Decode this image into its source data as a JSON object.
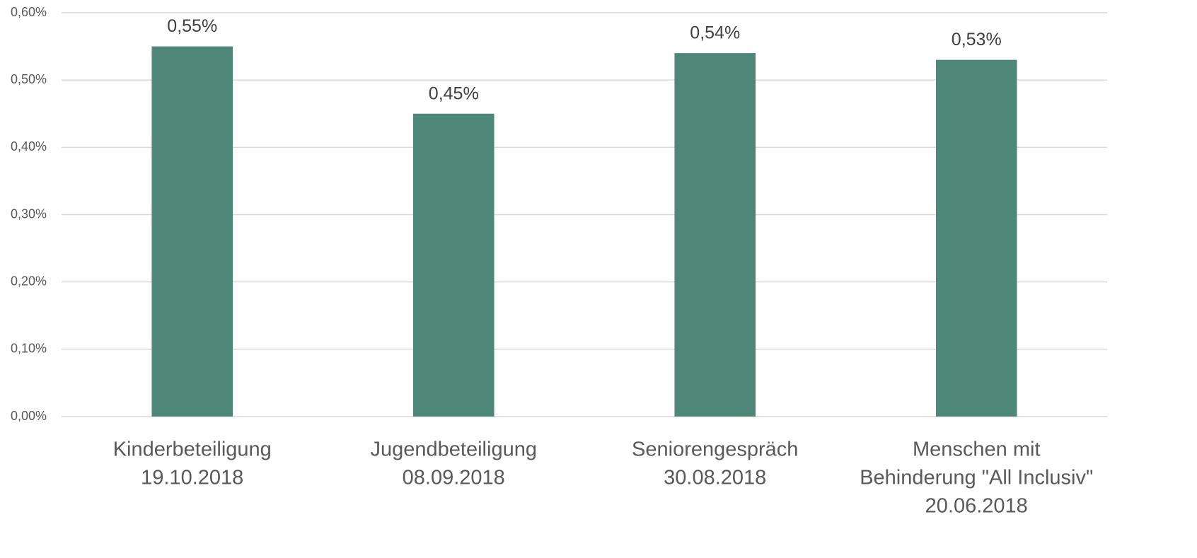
{
  "chart_data": {
    "type": "bar",
    "categories": [
      [
        "Kinderbeteiligung",
        "19.10.2018"
      ],
      [
        "Jugendbeteiligung",
        "08.09.2018"
      ],
      [
        "Seniorengespräch",
        "30.08.2018"
      ],
      [
        "Menschen mit",
        "Behinderung \"All Inclusiv\"",
        "20.06.2018"
      ]
    ],
    "values": [
      0.55,
      0.45,
      0.54,
      0.53
    ],
    "value_labels": [
      "0,55%",
      "0,45%",
      "0,54%",
      "0,53%"
    ],
    "color": "#4e8677",
    "ylim": [
      0,
      0.6
    ],
    "yticks": [
      {
        "value": 0,
        "label": "0,00%"
      },
      {
        "value": 0.1,
        "label": "0,10%"
      },
      {
        "value": 0.2,
        "label": "0,20%"
      },
      {
        "value": 0.3,
        "label": "0,30%"
      },
      {
        "value": 0.4,
        "label": "0,40%"
      },
      {
        "value": 0.5,
        "label": "0,50%"
      },
      {
        "value": 0.6,
        "label": "0,60%"
      }
    ],
    "grid": true
  }
}
